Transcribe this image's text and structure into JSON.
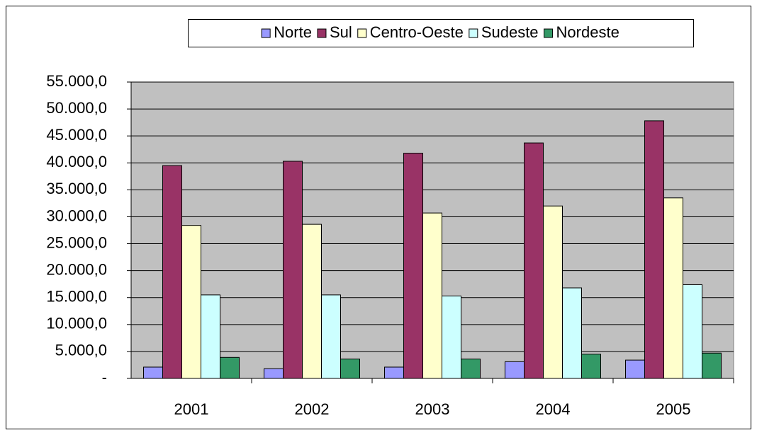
{
  "chart_data": {
    "type": "bar",
    "categories": [
      "2001",
      "2002",
      "2003",
      "2004",
      "2005"
    ],
    "series": [
      {
        "name": "Norte",
        "color": "#9999ff",
        "values": [
          2100,
          1800,
          2100,
          3100,
          3400
        ]
      },
      {
        "name": "Sul",
        "color": "#993366",
        "values": [
          39500,
          40300,
          41800,
          43700,
          47800
        ]
      },
      {
        "name": "Centro-Oeste",
        "color": "#ffffcc",
        "values": [
          28400,
          28600,
          30700,
          32000,
          33500
        ]
      },
      {
        "name": "Sudeste",
        "color": "#ccffff",
        "values": [
          15500,
          15500,
          15300,
          16800,
          17400
        ]
      },
      {
        "name": "Nordeste",
        "color": "#339966",
        "values": [
          3900,
          3600,
          3600,
          4500,
          4700
        ]
      }
    ],
    "ylim": [
      0,
      55000
    ],
    "yticks": [
      {
        "value": 0,
        "label": "-"
      },
      {
        "value": 5000,
        "label": "5.000,0"
      },
      {
        "value": 10000,
        "label": "10.000,0"
      },
      {
        "value": 15000,
        "label": "15.000,0"
      },
      {
        "value": 20000,
        "label": "20.000,0"
      },
      {
        "value": 25000,
        "label": "25.000,0"
      },
      {
        "value": 30000,
        "label": "30.000,0"
      },
      {
        "value": 35000,
        "label": "35.000,0"
      },
      {
        "value": 40000,
        "label": "40.000,0"
      },
      {
        "value": 45000,
        "label": "45.000,0"
      },
      {
        "value": 50000,
        "label": "50.000,0"
      },
      {
        "value": 55000,
        "label": "55.000,0"
      }
    ],
    "grid": true,
    "legend": "top"
  }
}
